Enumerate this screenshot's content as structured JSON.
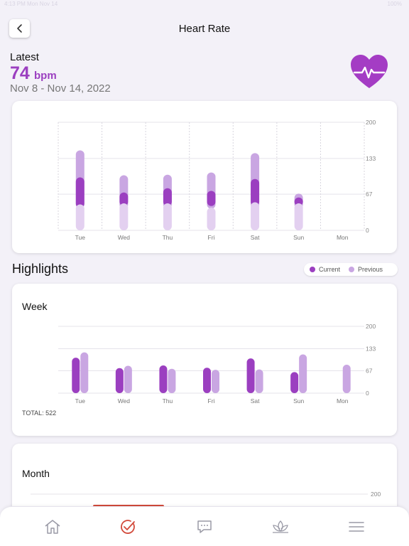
{
  "status_bar": {
    "left": "4:13 PM  Mon Nov 14",
    "right": "100%"
  },
  "header": {
    "title": "Heart Rate"
  },
  "latest": {
    "label": "Latest",
    "value": "74",
    "unit": "bpm",
    "date_range": "Nov 8 - Nov 14, 2022"
  },
  "icons": {
    "back": "chevron-left-icon",
    "heart": "heart-pulse-icon",
    "home": "home-icon",
    "check": "check-circle-icon",
    "chat": "chat-bubble-icon",
    "lotus": "lotus-icon",
    "menu": "menu-icon"
  },
  "colors": {
    "current": "#9b3fc0",
    "previous": "#c9a6e2",
    "light": "#e3d0f0",
    "accent": "#d24a3b",
    "heart": "#a43cc4"
  },
  "highlights": {
    "title": "Highlights",
    "legend_current": "Current",
    "legend_previous": "Previous"
  },
  "week_card": {
    "title": "Week",
    "total": "TOTAL: 522"
  },
  "month_card": {
    "title": "Month"
  },
  "chart_data": [
    {
      "type": "bar",
      "title": "",
      "categories": [
        "Tue",
        "Wed",
        "Thu",
        "Fri",
        "Sat",
        "Sun",
        "Mon"
      ],
      "yticks": [
        0,
        67,
        133,
        200
      ],
      "ylim": [
        0,
        200
      ],
      "series": [
        {
          "values": [
            [
              40,
              148
            ],
            [
              40,
              102
            ],
            [
              40,
              103
            ],
            [
              40,
              107
            ],
            [
              40,
              143
            ],
            [
              40,
              68
            ]
          ]
        },
        {
          "values": [
            [
              42,
              98
            ],
            [
              45,
              70
            ],
            [
              45,
              78
            ],
            [
              45,
              73
            ],
            [
              45,
              95
            ],
            [
              45,
              60
            ]
          ]
        },
        {
          "values": [
            [
              0,
              48
            ],
            [
              0,
              50
            ],
            [
              0,
              50
            ],
            [
              0,
              42
            ],
            [
              0,
              52
            ],
            [
              0,
              50
            ]
          ]
        }
      ],
      "grid": true
    },
    {
      "type": "bar",
      "categories": [
        "Tue",
        "Wed",
        "Thu",
        "Fri",
        "Sat",
        "Sun",
        "Mon"
      ],
      "yticks": [
        0,
        67,
        133,
        200
      ],
      "ylim": [
        0,
        200
      ],
      "series": [
        {
          "name": "Current",
          "values": [
            106,
            75,
            83,
            76,
            104,
            63,
            null
          ]
        },
        {
          "name": "Previous",
          "values": [
            122,
            82,
            73,
            70,
            71,
            116,
            85
          ]
        }
      ],
      "grid": true
    },
    {
      "type": "bar",
      "yticks": [
        200
      ],
      "series": []
    }
  ]
}
